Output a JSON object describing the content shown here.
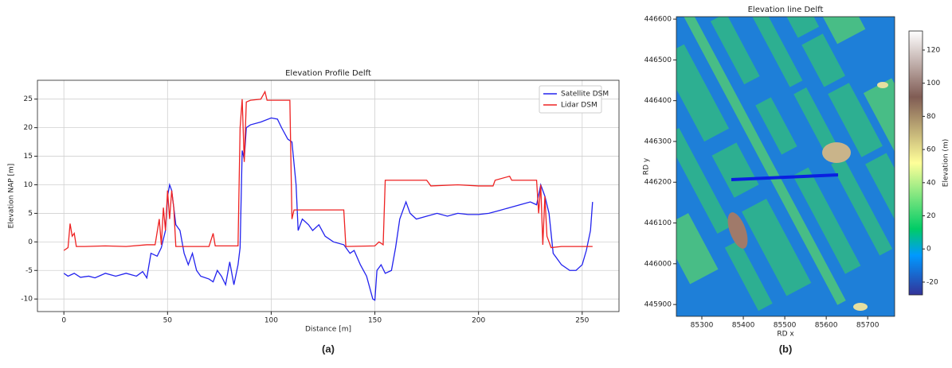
{
  "chart_data": [
    {
      "type": "line",
      "title": "Elevation Profile Delft",
      "xlabel": "Distance [m]",
      "ylabel": "Elevation NAP [m]",
      "xlim": [
        -12.75,
        267.75
      ],
      "ylim": [
        -12.2,
        28.3
      ],
      "xticks": [
        0,
        50,
        100,
        150,
        200,
        250
      ],
      "yticks": [
        -10,
        -5,
        0,
        5,
        10,
        15,
        20,
        25
      ],
      "grid": true,
      "legend": "upper right",
      "series": [
        {
          "name": "Satellite DSM",
          "color": "#2222ee",
          "x": [
            0,
            2,
            5,
            8,
            12,
            15,
            20,
            25,
            30,
            35,
            38,
            40,
            42,
            45,
            47,
            49,
            50,
            51,
            52,
            54,
            56,
            58,
            60,
            62,
            64,
            66,
            70,
            72,
            74,
            76,
            78,
            80,
            82,
            84,
            85,
            86,
            87,
            88,
            90,
            95,
            100,
            103,
            105,
            108,
            110,
            112,
            113,
            115,
            118,
            120,
            123,
            126,
            130,
            135,
            138,
            140,
            143,
            146,
            149,
            150,
            151,
            153,
            155,
            158,
            160,
            162,
            165,
            167,
            170,
            175,
            180,
            185,
            190,
            195,
            200,
            205,
            210,
            215,
            220,
            225,
            228,
            230,
            232,
            234,
            236,
            238,
            240,
            244,
            247,
            250,
            252,
            254,
            255
          ],
          "values": [
            -5.5,
            -6,
            -5.5,
            -6.2,
            -6,
            -6.3,
            -5.5,
            -6,
            -5.5,
            -6,
            -5.2,
            -6.3,
            -2,
            -2.5,
            -1,
            2,
            8,
            10,
            9,
            3,
            2,
            -2,
            -4,
            -2,
            -5,
            -6,
            -6.5,
            -7,
            -5,
            -6,
            -7.5,
            -3.5,
            -7.5,
            -4,
            -1,
            16,
            14.5,
            20,
            20.5,
            21,
            21.7,
            21.5,
            20,
            18,
            17.5,
            10,
            2,
            4,
            3,
            2,
            3,
            1,
            0,
            -0.5,
            -2,
            -1.5,
            -4,
            -6,
            -10,
            -10.2,
            -5,
            -4,
            -5.5,
            -5,
            -1,
            4,
            7,
            5,
            4,
            4.5,
            5,
            4.5,
            5,
            4.8,
            4.8,
            5,
            5.5,
            6,
            6.5,
            7,
            6.5,
            10,
            8,
            5,
            -2,
            -3,
            -4,
            -5,
            -5,
            -4,
            -1.5,
            2,
            7
          ]
        },
        {
          "name": "Lidar DSM",
          "color": "#ee2222",
          "x": [
            0,
            2,
            3,
            4,
            5,
            6,
            10,
            20,
            30,
            40,
            44,
            46,
            47,
            48,
            49,
            50,
            51,
            52,
            53,
            54,
            60,
            70,
            72,
            73,
            80,
            84,
            85,
            86,
            87,
            88,
            90,
            95,
            97,
            98,
            105,
            109,
            110,
            111,
            120,
            130,
            135,
            136,
            150,
            152,
            154,
            155,
            165,
            175,
            177,
            190,
            200,
            207,
            208,
            215,
            216,
            228,
            229,
            230,
            231,
            232,
            233,
            235,
            240,
            255
          ],
          "values": [
            -1.5,
            -1,
            3.2,
            1,
            1.5,
            -0.8,
            -0.8,
            -0.7,
            -0.8,
            -0.5,
            -0.5,
            4,
            -0.5,
            6,
            2,
            9,
            4,
            9,
            6,
            -0.8,
            -0.8,
            -0.8,
            1.5,
            -0.7,
            -0.7,
            -0.7,
            20,
            25,
            14,
            24.5,
            24.8,
            25,
            26.3,
            24.8,
            24.8,
            24.8,
            4,
            5.6,
            5.6,
            5.6,
            5.6,
            -0.8,
            -0.7,
            0,
            -0.5,
            10.8,
            10.8,
            10.8,
            9.8,
            10,
            9.8,
            9.8,
            10.8,
            11.5,
            10.8,
            10.8,
            5,
            10,
            -0.5,
            8,
            1,
            -1,
            -0.8,
            -0.8
          ]
        }
      ]
    },
    {
      "type": "image",
      "title": "Elevation line Delft",
      "xlabel": "RD x",
      "ylabel": "RD y",
      "xlim": [
        85238.5,
        85765
      ],
      "ylim": [
        445871,
        446606
      ],
      "xticks": [
        85300,
        85400,
        85500,
        85600,
        85700
      ],
      "yticks": [
        445900,
        446000,
        446100,
        446200,
        446300,
        446400,
        446500,
        446600
      ],
      "colorbar": {
        "label": "Elevation (m)",
        "colormap": "terrain",
        "lim": [
          -27.7,
          131.5
        ],
        "ticks": [
          -20,
          0,
          20,
          40,
          60,
          80,
          100,
          120
        ]
      }
    }
  ],
  "captions": [
    "(a)",
    "(b)"
  ]
}
